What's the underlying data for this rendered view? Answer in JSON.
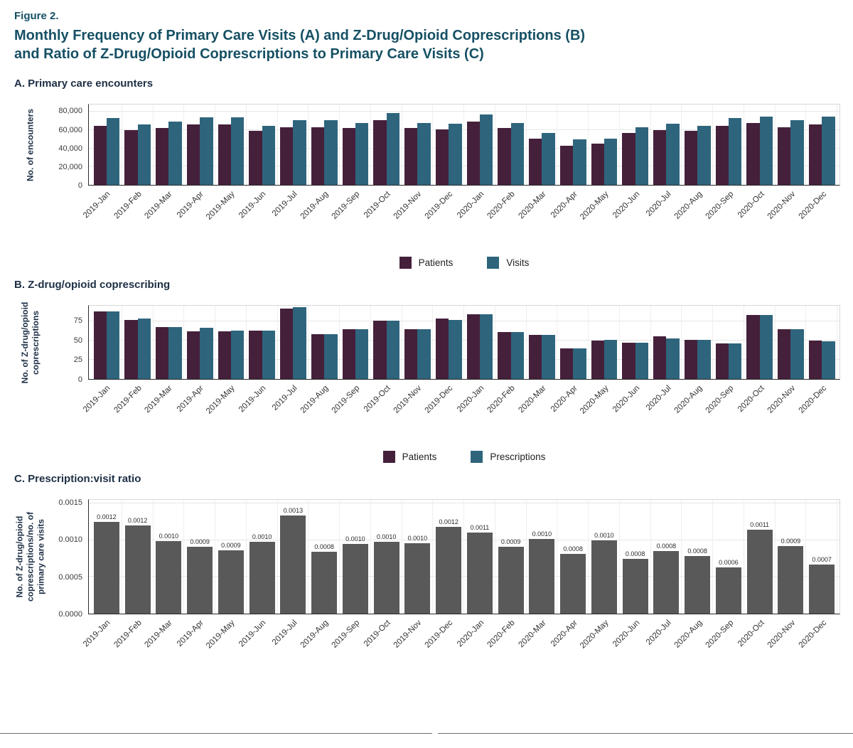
{
  "figure": {
    "label": "Figure 2.",
    "title": "Monthly Frequency of Primary Care Visits (A) and Z-Drug/Opioid Coprescriptions (B)\nand Ratio of Z-Drug/Opioid Coprescriptions to Primary Care Visits (C)"
  },
  "colors": {
    "patients_bar": "#45203B",
    "visits_bar": "#2E657D",
    "ratio_bar": "#595959",
    "title_text": "#165064",
    "heading_text": "#1D2F45"
  },
  "chart_data": [
    {
      "id": "A",
      "type": "bar",
      "heading": "A. Primary care encounters",
      "ylabel": "No. of encounters",
      "ymax": 88000,
      "yticks": [
        0,
        20000,
        40000,
        60000,
        80000
      ],
      "ytick_labels": [
        "0",
        "20,000",
        "40,000",
        "60,000",
        "80,000"
      ],
      "categories": [
        "2019-Jan",
        "2019-Feb",
        "2019-Mar",
        "2019-Apr",
        "2019-May",
        "2019-Jun",
        "2019-Jul",
        "2019-Aug",
        "2019-Sep",
        "2019-Oct",
        "2019-Nov",
        "2019-Dec",
        "2020-Jan",
        "2020-Feb",
        "2020-Mar",
        "2020-Apr",
        "2020-May",
        "2020-Jun",
        "2020-Jul",
        "2020-Aug",
        "2020-Sep",
        "2020-Oct",
        "2020-Nov",
        "2020-Dec"
      ],
      "series": [
        {
          "name": "Patients",
          "color": "#45203B",
          "values": [
            65000,
            60000,
            62000,
            66000,
            66000,
            59000,
            63000,
            63000,
            62000,
            71000,
            62000,
            61000,
            69000,
            62000,
            51000,
            43000,
            45000,
            57000,
            60000,
            59000,
            65000,
            68000,
            63000,
            66000
          ]
        },
        {
          "name": "Visits",
          "color": "#2E657D",
          "values": [
            73000,
            66000,
            69000,
            74000,
            74000,
            65000,
            71000,
            71000,
            68000,
            79000,
            68000,
            67000,
            77000,
            68000,
            57000,
            50000,
            51000,
            63000,
            67000,
            65000,
            73000,
            75000,
            71000,
            75000
          ]
        }
      ]
    },
    {
      "id": "B",
      "type": "bar",
      "heading": "B. Z-drug/opioid coprescribing",
      "ylabel": "No. of Z-drug/opioid\ncoprescriptions",
      "ymax": 95,
      "yticks": [
        0,
        25,
        50,
        75
      ],
      "ytick_labels": [
        "0",
        "25",
        "50",
        "75"
      ],
      "categories": [
        "2019-Jan",
        "2019-Feb",
        "2019-Mar",
        "2019-Apr",
        "2019-May",
        "2019-Jun",
        "2019-Jul",
        "2019-Aug",
        "2019-Sep",
        "2019-Oct",
        "2019-Nov",
        "2019-Dec",
        "2020-Jan",
        "2020-Feb",
        "2020-Mar",
        "2020-Apr",
        "2020-May",
        "2020-Jun",
        "2020-Jul",
        "2020-Aug",
        "2020-Sep",
        "2020-Oct",
        "2020-Nov",
        "2020-Dec"
      ],
      "series": [
        {
          "name": "Patients",
          "color": "#45203B",
          "values": [
            88,
            77,
            67,
            62,
            62,
            63,
            91,
            58,
            65,
            76,
            65,
            78,
            84,
            61,
            57,
            40,
            50,
            47,
            55,
            51,
            46,
            83,
            65,
            50
          ]
        },
        {
          "name": "Prescriptions",
          "color": "#2E657D",
          "values": [
            88,
            78,
            67,
            66,
            63,
            63,
            93,
            58,
            65,
            76,
            65,
            77,
            84,
            61,
            57,
            40,
            51,
            47,
            53,
            51,
            46,
            83,
            65,
            49
          ]
        }
      ]
    },
    {
      "id": "C",
      "type": "bar",
      "heading": "C. Prescription:visit ratio",
      "ylabel": "No. of Z-drug/opioid\ncoprescriptions/no. of\nprimary care visits",
      "ymax": 0.00155,
      "yticks": [
        0,
        0.0005,
        0.001,
        0.0015
      ],
      "ytick_labels": [
        "0.0000",
        "0.0005",
        "0.0010",
        "0.0015"
      ],
      "categories": [
        "2019-Jan",
        "2019-Feb",
        "2019-Mar",
        "2019-Apr",
        "2019-May",
        "2019-Jun",
        "2019-Jul",
        "2019-Aug",
        "2019-Sep",
        "2019-Oct",
        "2019-Nov",
        "2019-Dec",
        "2020-Jan",
        "2020-Feb",
        "2020-Mar",
        "2020-Apr",
        "2020-May",
        "2020-Jun",
        "2020-Jul",
        "2020-Aug",
        "2020-Sep",
        "2020-Oct",
        "2020-Nov",
        "2020-Dec"
      ],
      "series": [
        {
          "name": "Ratio",
          "color": "#595959",
          "values": [
            0.00125,
            0.0012,
            0.00099,
            0.00091,
            0.00086,
            0.00098,
            0.00134,
            0.00084,
            0.00095,
            0.00098,
            0.00096,
            0.00118,
            0.0011,
            0.00091,
            0.00102,
            0.00081,
            0.001,
            0.00075,
            0.00085,
            0.00078,
            0.00063,
            0.00114,
            0.00092,
            0.00067
          ],
          "labels": [
            "0.0012",
            "0.0012",
            "0.0010",
            "0.0009",
            "0.0009",
            "0.0010",
            "0.0013",
            "0.0008",
            "0.0010",
            "0.0010",
            "0.0010",
            "0.0012",
            "0.0011",
            "0.0009",
            "0.0010",
            "0.0008",
            "0.0010",
            "0.0008",
            "0.0008",
            "0.0008",
            "0.0006",
            "0.0011",
            "0.0009",
            "0.0007"
          ]
        }
      ]
    }
  ]
}
